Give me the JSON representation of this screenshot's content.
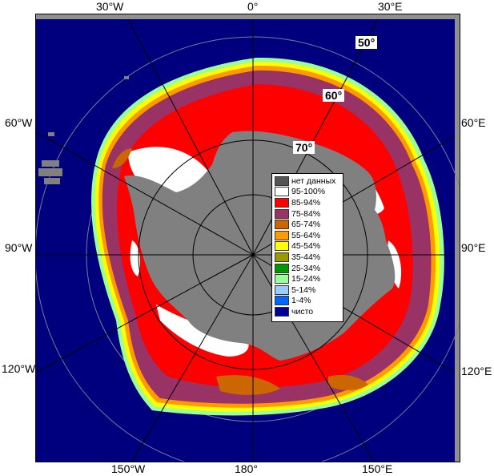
{
  "map": {
    "longitude_labels": {
      "top": [
        "30°W",
        "0°",
        "30°E"
      ],
      "left": [
        "60°W",
        "90°W",
        "120°W"
      ],
      "right": [
        "60°E",
        "90°E",
        "120°E"
      ],
      "bottom": [
        "150°W",
        "180°",
        "150°E"
      ]
    },
    "latitude_labels": [
      "50°",
      "60°",
      "70°"
    ],
    "colors": {
      "ocean": "#00007f",
      "land_no_data": "#808080",
      "frame_gray": "#909090",
      "grid": "#7a7a9a"
    }
  },
  "legend": {
    "items": [
      {
        "label": "нет данных",
        "color": "#555555"
      },
      {
        "label": "95-100%",
        "color": "#ffffff"
      },
      {
        "label": "85-94%",
        "color": "#ff0000"
      },
      {
        "label": "75-84%",
        "color": "#993366"
      },
      {
        "label": "65-74%",
        "color": "#cc6600"
      },
      {
        "label": "55-64%",
        "color": "#ff9900"
      },
      {
        "label": "45-54%",
        "color": "#ffff00"
      },
      {
        "label": "35-44%",
        "color": "#999900"
      },
      {
        "label": "25-34%",
        "color": "#009900"
      },
      {
        "label": "15-24%",
        "color": "#99ff99"
      },
      {
        "label": "5-14%",
        "color": "#99ccff"
      },
      {
        "label": "1-4%",
        "color": "#0066ff"
      },
      {
        "label": "чисто",
        "color": "#000099"
      }
    ]
  }
}
